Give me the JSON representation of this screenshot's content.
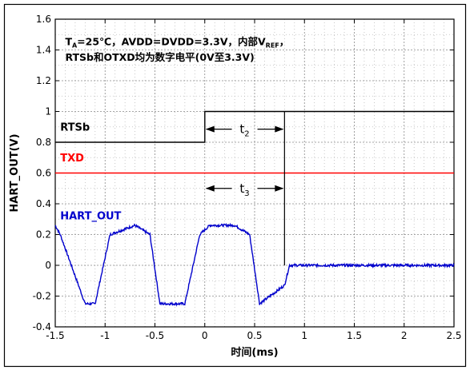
{
  "chart_data": {
    "type": "line",
    "title": "",
    "xlabel": "时间(ms)",
    "ylabel": "HART_OUT(V)",
    "xlim": [
      -1.5,
      2.5
    ],
    "ylim": [
      -0.4,
      1.6
    ],
    "x_ticks": [
      "-1.5",
      "-1",
      "-0.5",
      "0",
      "0.5",
      "1",
      "1.5",
      "2",
      "2.5"
    ],
    "y_ticks": [
      "-0.4",
      "-0.2",
      "0",
      "0.2",
      "0.4",
      "0.6",
      "0.8",
      "1",
      "1.2",
      "1.4",
      "1.6"
    ],
    "grid": true,
    "annotation": {
      "line1_parts": [
        "T",
        "A",
        "=25℃，AVDD=DVDD=3.3V，内部V",
        "REF",
        "，"
      ],
      "line2": "RTSb和OTXD均为数字电平(0V至3.3V)"
    },
    "t2_label": [
      "t",
      "2"
    ],
    "t3_label": [
      "t",
      "3"
    ],
    "t2_range": [
      0,
      0.8
    ],
    "t3_range": [
      0,
      0.8
    ],
    "t2_y": 0.885,
    "t3_y": 0.5,
    "series": [
      {
        "name": "RTSb",
        "color": "#000000",
        "label_pos": [
          -1.45,
          0.875
        ],
        "x": [
          -1.5,
          0,
          0,
          2.5
        ],
        "y": [
          0.8,
          0.8,
          1.0,
          1.0
        ]
      },
      {
        "name": "TXD",
        "color": "#ff0000",
        "label_pos": [
          -1.45,
          0.675
        ],
        "x": [
          -1.5,
          2.5
        ],
        "y": [
          0.6,
          0.6
        ]
      },
      {
        "name": "HART_OUT",
        "color": "#0000cc",
        "label_pos": [
          -1.45,
          0.3
        ],
        "x": [
          -1.5,
          -1.45,
          -1.2,
          -1.1,
          -0.95,
          -0.7,
          -0.55,
          -0.45,
          -0.2,
          -0.05,
          0.05,
          0.3,
          0.45,
          0.55,
          0.8,
          0.85,
          2.5
        ],
        "y": [
          0.26,
          0.2,
          -0.25,
          -0.25,
          0.2,
          0.26,
          0.2,
          -0.25,
          -0.25,
          0.2,
          0.26,
          0.26,
          0.2,
          -0.25,
          -0.13,
          0.0,
          0.0
        ]
      }
    ],
    "marker_line": {
      "x": 0.8,
      "y_range": [
        0.0,
        1.0
      ]
    }
  }
}
